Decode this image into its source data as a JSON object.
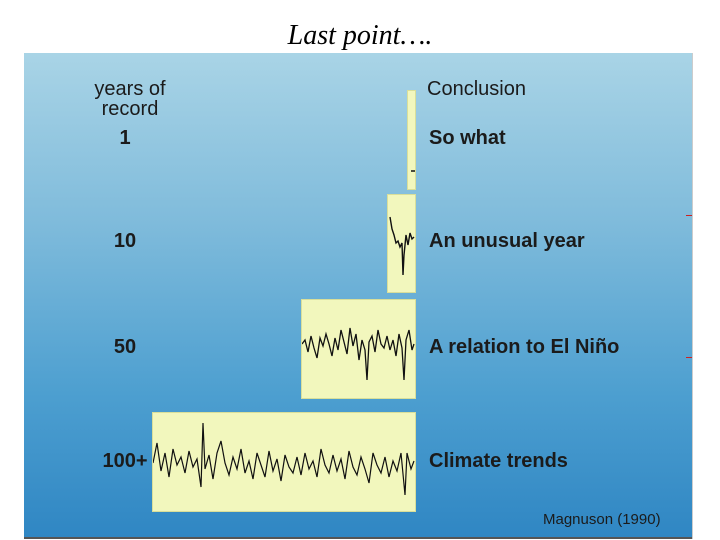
{
  "slide": {
    "title": "Last point…."
  },
  "headers": {
    "years": [
      "years of",
      "record"
    ],
    "conclusion": "Conclusion"
  },
  "rows": [
    {
      "years": "1",
      "conclusion": "So what"
    },
    {
      "years": "10",
      "conclusion": "An unusual year"
    },
    {
      "years": "50",
      "conclusion": "A relation to El Niño"
    },
    {
      "years": "100+",
      "conclusion": "Climate trends"
    }
  ],
  "citation": "Magnuson (1990)",
  "colors": {
    "box_fill": "#f2f7bd",
    "trace": "#111111",
    "annotation_red": "#cc2222"
  }
}
